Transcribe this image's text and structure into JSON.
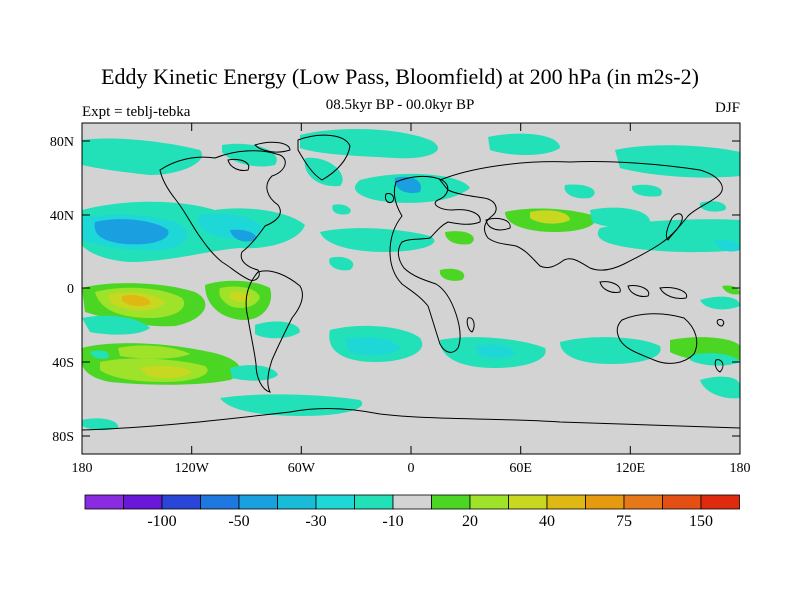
{
  "title": "Eddy Kinetic Energy (Low Pass, Bloomfield) at 200 hPa (in m2s-2)",
  "experiment": "Expt = teblj-tebka",
  "period": "08.5kyr BP - 00.0kyr BP",
  "season": "DJF",
  "colors": {
    "land_background": "#d3d3d3",
    "levels": [
      "#8a2be2",
      "#6a18d8",
      "#2a46d8",
      "#1e78e0",
      "#1aa0e0",
      "#18bcd8",
      "#1ed8d8",
      "#22e0b8",
      "#d3d3d3",
      "#4cd624",
      "#9ee22a",
      "#c8d820",
      "#e0b814",
      "#e69a10",
      "#e6781a",
      "#e45014",
      "#e02a10"
    ]
  },
  "colorbar": {
    "labels": [
      "-100",
      "-50",
      "-30",
      "-10",
      "20",
      "40",
      "75",
      "150"
    ]
  },
  "axes": {
    "lat_ticks": [
      "80N",
      "40N",
      "0",
      "40S",
      "80S"
    ],
    "lon_ticks": [
      "180",
      "120W",
      "60W",
      "0",
      "60E",
      "120E",
      "180"
    ]
  }
}
